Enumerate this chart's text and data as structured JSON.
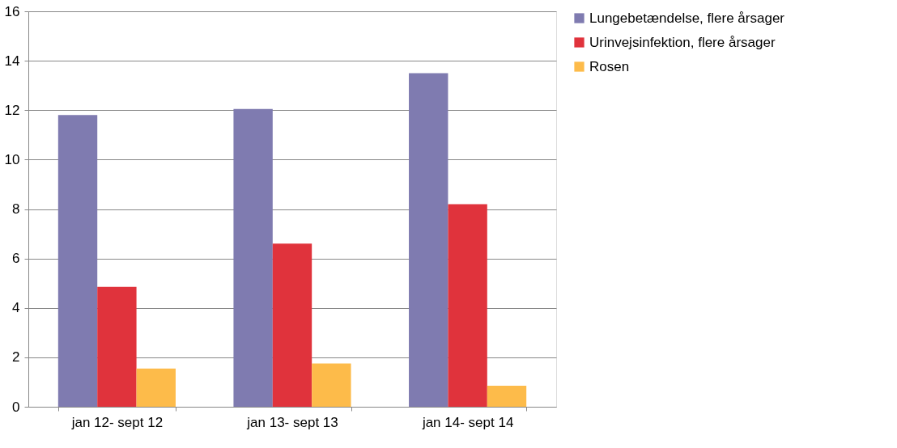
{
  "chart_data": {
    "type": "bar",
    "categories": [
      "jan 12- sept 12",
      "jan 13- sept 13",
      "jan 14- sept 14"
    ],
    "series": [
      {
        "name": "Lungebetændelse, flere årsager",
        "color": "#7f7bb0",
        "values": [
          11.8,
          12.05,
          13.5
        ]
      },
      {
        "name": "Urinvejsinfektion, flere årsager",
        "color": "#e0333c",
        "values": [
          4.85,
          6.6,
          8.2
        ]
      },
      {
        "name": "Rosen",
        "color": "#fdbb4a",
        "values": [
          1.55,
          1.75,
          0.85
        ]
      }
    ],
    "ylim": [
      0,
      16
    ],
    "yticks": [
      0,
      2,
      4,
      6,
      8,
      10,
      12,
      14,
      16
    ],
    "grid": "y",
    "legend": "right"
  }
}
